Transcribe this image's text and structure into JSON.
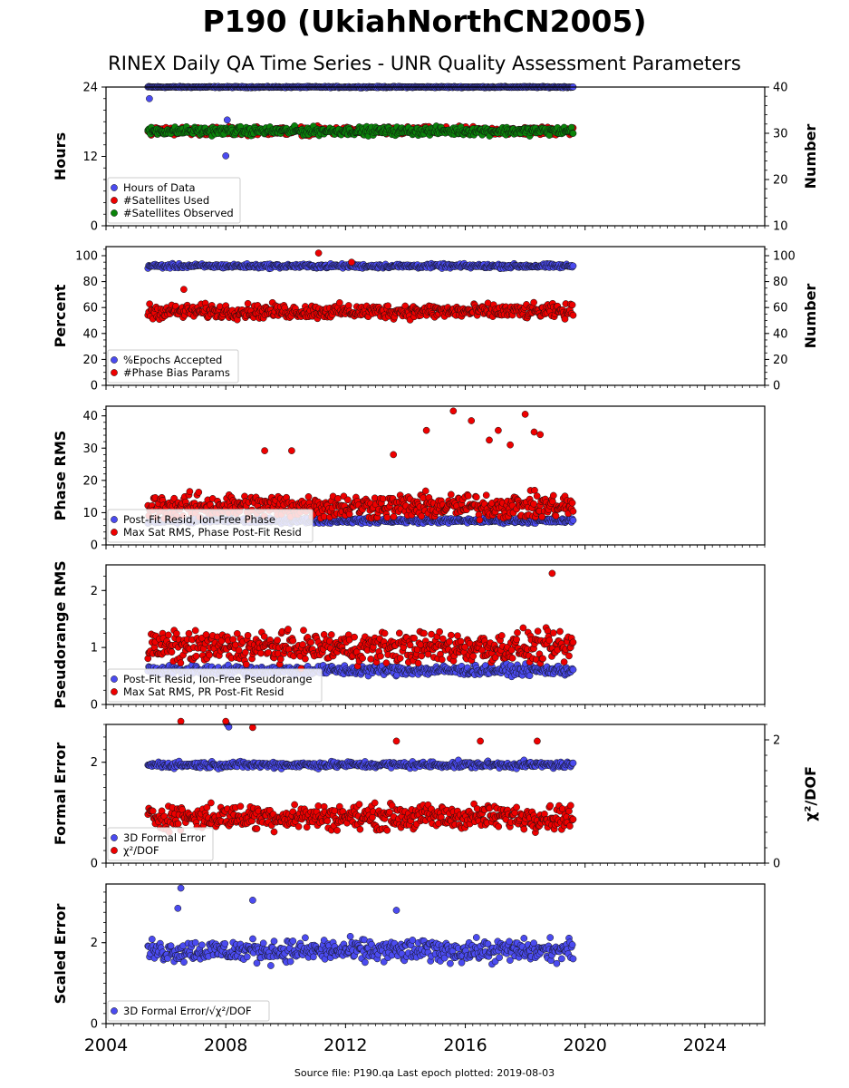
{
  "header": {
    "title": "P190 (UkiahNorthCN2005)",
    "subtitle": "RINEX Daily QA Time Series - UNR Quality Assessment Parameters"
  },
  "footer": {
    "text": "Source file: P190.qa Last epoch plotted: 2019-08-03"
  },
  "colors": {
    "blue": "#4b4bf0",
    "red": "#ee0000",
    "green": "#0a840a",
    "edge": "#111111"
  },
  "chart_data": [
    {
      "type": "scatter",
      "panel": "hours",
      "ylabel": "Hours",
      "ylim": [
        0,
        24
      ],
      "yticks": [
        "0",
        "12",
        "24"
      ],
      "right_axis": {
        "label": "Number",
        "ylim": [
          10,
          40
        ],
        "ticks": [
          "10",
          "20",
          "30",
          "40"
        ]
      },
      "xlim": [
        2004,
        2026
      ],
      "legend": [
        "Hours of Data",
        "#Satellites Used",
        "#Satellites Observed"
      ],
      "legend_placement": "lower-left",
      "series": [
        {
          "name": "Hours of Data",
          "color": "blue",
          "axis": "left",
          "x_range": [
            2005.4,
            2019.6
          ],
          "typical": 24.0,
          "spread": 0.1,
          "outliers": [
            [
              2005.45,
              22.0
            ],
            [
              2008.0,
              12.1
            ],
            [
              2008.05,
              18.3
            ]
          ]
        },
        {
          "name": "#Satellites Used",
          "color": "red",
          "axis": "right",
          "x_range": [
            2005.4,
            2019.6
          ],
          "typical": 30.5,
          "spread": 0.8,
          "outliers": []
        },
        {
          "name": "#Satellites Observed",
          "color": "green",
          "axis": "right",
          "x_range": [
            2005.4,
            2019.6
          ],
          "typical": 30.5,
          "spread": 0.8,
          "outliers": []
        }
      ]
    },
    {
      "type": "scatter",
      "panel": "percent",
      "ylabel": "Percent",
      "ylim": [
        0,
        107
      ],
      "yticks": [
        "0",
        "20",
        "40",
        "60",
        "80",
        "100"
      ],
      "right_axis": {
        "label": "Number",
        "ylim": [
          0,
          107
        ],
        "ticks": [
          "0",
          "20",
          "40",
          "60",
          "80",
          "100"
        ]
      },
      "xlim": [
        2004,
        2026
      ],
      "legend": [
        "%Epochs Accepted",
        "#Phase Bias Params"
      ],
      "legend_placement": "lower-left",
      "series": [
        {
          "name": "%Epochs Accepted",
          "color": "blue",
          "axis": "left",
          "x_range": [
            2005.4,
            2019.6
          ],
          "typical": 92,
          "spread": 1.5,
          "outliers": []
        },
        {
          "name": "#Phase Bias Params",
          "color": "red",
          "axis": "right",
          "x_range": [
            2005.4,
            2019.6
          ],
          "typical": 57,
          "spread": 5,
          "outliers": [
            [
              2011.1,
              102
            ],
            [
              2012.2,
              95
            ],
            [
              2006.6,
              74
            ]
          ]
        }
      ]
    },
    {
      "type": "scatter",
      "panel": "phase_rms",
      "ylabel": "Phase RMS",
      "ylim": [
        0,
        43
      ],
      "yticks": [
        "0",
        "10",
        "20",
        "30",
        "40"
      ],
      "xlim": [
        2004,
        2026
      ],
      "legend": [
        "Post-Fit Resid, Ion-Free Phase",
        "Max Sat RMS, Phase Post-Fit Resid"
      ],
      "legend_placement": "lower-left",
      "series": [
        {
          "name": "Post-Fit Resid, Ion-Free Phase",
          "color": "blue",
          "x_range": [
            2005.4,
            2019.6
          ],
          "typical": 7.5,
          "spread": 0.7,
          "outliers": []
        },
        {
          "name": "Max Sat RMS, Phase Post-Fit Resid",
          "color": "red",
          "x_range": [
            2005.4,
            2019.6
          ],
          "typical": 12,
          "spread": 3.5,
          "outliers": [
            [
              2015.6,
              41.5
            ],
            [
              2018.0,
              40.5
            ],
            [
              2016.2,
              38.5
            ],
            [
              2014.7,
              35.5
            ],
            [
              2017.1,
              35.5
            ],
            [
              2018.3,
              35
            ],
            [
              2018.5,
              34.2
            ],
            [
              2016.8,
              32.5
            ],
            [
              2013.6,
              28
            ],
            [
              2009.3,
              29.2
            ],
            [
              2010.2,
              29.2
            ],
            [
              2017.5,
              31
            ]
          ]
        }
      ]
    },
    {
      "type": "scatter",
      "panel": "pseudorange_rms",
      "ylabel": "Pseudorange RMS",
      "ylim": [
        0,
        2.45
      ],
      "yticks": [
        "0",
        "1",
        "2"
      ],
      "xlim": [
        2004,
        2026
      ],
      "legend": [
        "Post-Fit Resid, Ion-Free Pseudorange",
        "Max Sat RMS, PR Post-Fit Resid"
      ],
      "legend_placement": "lower-left",
      "series": [
        {
          "name": "Post-Fit Resid, Ion-Free Pseudorange",
          "color": "blue",
          "x_range": [
            2005.4,
            2019.6
          ],
          "typical": 0.6,
          "spread": 0.08,
          "outliers": []
        },
        {
          "name": "Max Sat RMS, PR Post-Fit Resid",
          "color": "red",
          "x_range": [
            2005.4,
            2019.6
          ],
          "typical": 1.0,
          "spread": 0.25,
          "outliers": [
            [
              2018.9,
              2.3
            ]
          ]
        }
      ]
    },
    {
      "type": "scatter",
      "panel": "formal_error",
      "ylabel": "Formal Error",
      "ylim": [
        0,
        2.75
      ],
      "yticks": [
        "0",
        "2"
      ],
      "right_axis": {
        "label": "χ²/DOF",
        "ylim": [
          0,
          2.25
        ],
        "ticks": [
          "0",
          "2"
        ]
      },
      "xlim": [
        2004,
        2026
      ],
      "legend": [
        "3D Formal Error",
        "χ²/DOF"
      ],
      "legend_placement": "lower-left",
      "series": [
        {
          "name": "3D Formal Error",
          "color": "blue",
          "axis": "left",
          "x_range": [
            2005.4,
            2019.6
          ],
          "typical": 1.95,
          "spread": 0.06,
          "outliers": [
            [
              2008.05,
              2.75
            ],
            [
              2008.1,
              2.7
            ]
          ]
        },
        {
          "name": "χ²/DOF",
          "color": "red",
          "axis": "right",
          "x_range": [
            2005.4,
            2019.6
          ],
          "typical": 0.75,
          "spread": 0.18,
          "outliers": [
            [
              2006.5,
              2.3
            ],
            [
              2008.0,
              2.3
            ],
            [
              2008.9,
              2.2
            ],
            [
              2013.7,
              1.98
            ],
            [
              2016.5,
              1.98
            ],
            [
              2018.4,
              1.98
            ]
          ]
        }
      ]
    },
    {
      "type": "scatter",
      "panel": "scaled_error",
      "ylabel": "Scaled Error",
      "ylim": [
        0,
        3.45
      ],
      "yticks": [
        "0",
        "2"
      ],
      "xlim": [
        2004,
        2026
      ],
      "xticks": [
        "2004",
        "2008",
        "2012",
        "2016",
        "2020",
        "2024"
      ],
      "legend": [
        "3D Formal Error/√χ²/DOF"
      ],
      "legend_placement": "lower-left",
      "series": [
        {
          "name": "3D Formal Error/√χ²/DOF",
          "color": "blue",
          "x_range": [
            2005.4,
            2019.6
          ],
          "typical": 1.8,
          "spread": 0.25,
          "outliers": [
            [
              2006.5,
              3.35
            ],
            [
              2008.9,
              3.05
            ],
            [
              2006.4,
              2.85
            ],
            [
              2013.7,
              2.8
            ]
          ]
        }
      ]
    }
  ]
}
